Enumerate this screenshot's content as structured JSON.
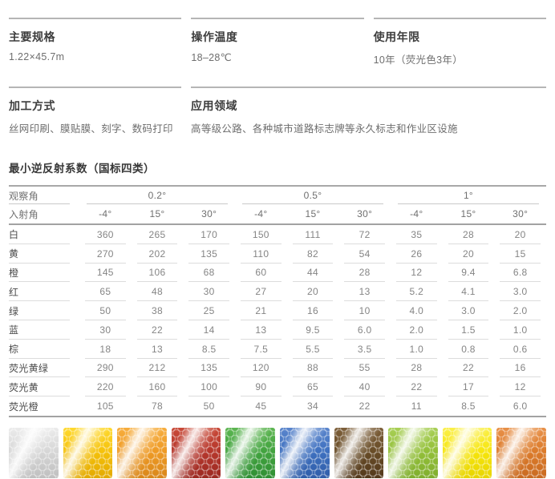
{
  "info_sections": [
    {
      "title": "主要规格",
      "value": "1.22×45.7m"
    },
    {
      "title": "操作温度",
      "value": "18–28℃"
    },
    {
      "title": "使用年限",
      "value": "10年（荧光色3年）"
    },
    {
      "title": "加工方式",
      "value": "丝网印刷、膜贴膜、刻字、数码打印"
    },
    {
      "title": "应用领域",
      "value": "高等级公路、各种城市道路标志牌等永久标志和作业区设施"
    }
  ],
  "table": {
    "title": "最小逆反射系数（国标四类）",
    "observation_angle_label": "观察角",
    "entrance_angle_label": "入射角",
    "observation_angles": [
      "0.2°",
      "0.5°",
      "1°"
    ],
    "entrance_angles": [
      "-4°",
      "15°",
      "30°",
      "-4°",
      "15°",
      "30°",
      "-4°",
      "15°",
      "30°"
    ],
    "rows": [
      {
        "label": "白",
        "values": [
          "360",
          "265",
          "170",
          "150",
          "111",
          "72",
          "35",
          "28",
          "20"
        ]
      },
      {
        "label": "黄",
        "values": [
          "270",
          "202",
          "135",
          "110",
          "82",
          "54",
          "26",
          "20",
          "15"
        ]
      },
      {
        "label": "橙",
        "values": [
          "145",
          "106",
          "68",
          "60",
          "44",
          "28",
          "12",
          "9.4",
          "6.8"
        ]
      },
      {
        "label": "红",
        "values": [
          "65",
          "48",
          "30",
          "27",
          "20",
          "13",
          "5.2",
          "4.1",
          "3.0"
        ]
      },
      {
        "label": "绿",
        "values": [
          "50",
          "38",
          "25",
          "21",
          "16",
          "10",
          "4.0",
          "3.0",
          "2.0"
        ]
      },
      {
        "label": "蓝",
        "values": [
          "30",
          "22",
          "14",
          "13",
          "9.5",
          "6.0",
          "2.0",
          "1.5",
          "1.0"
        ]
      },
      {
        "label": "棕",
        "values": [
          "18",
          "13",
          "8.5",
          "7.5",
          "5.5",
          "3.5",
          "1.0",
          "0.8",
          "0.6"
        ]
      },
      {
        "label": "荧光黄绿",
        "values": [
          "290",
          "212",
          "135",
          "120",
          "88",
          "55",
          "28",
          "22",
          "16"
        ]
      },
      {
        "label": "荧光黄",
        "values": [
          "220",
          "160",
          "100",
          "90",
          "65",
          "40",
          "22",
          "17",
          "12"
        ]
      },
      {
        "label": "荧光橙",
        "values": [
          "105",
          "78",
          "50",
          "45",
          "34",
          "22",
          "11",
          "8.5",
          "6.0"
        ]
      }
    ]
  },
  "swatches": {
    "items": [
      {
        "label": "白",
        "name": "white",
        "c1": "#ebebeb",
        "c2": "#d6d6d6",
        "c3": "#bfbfbf"
      },
      {
        "label": "黄",
        "name": "yellow",
        "c1": "#ffd92e",
        "c2": "#f5c10b",
        "c3": "#e3a900"
      },
      {
        "label": "橙",
        "name": "orange",
        "c1": "#f7ad3c",
        "c2": "#ee9a25",
        "c3": "#d9871a"
      },
      {
        "label": "红",
        "name": "red",
        "c1": "#c94a38",
        "c2": "#b5372c",
        "c3": "#9c2a22"
      },
      {
        "label": "绿",
        "name": "green",
        "c1": "#5cb551",
        "c2": "#42a33f",
        "c3": "#2f8f33"
      },
      {
        "label": "蓝",
        "name": "blue",
        "c1": "#5a85cc",
        "c2": "#3e70bf",
        "c3": "#2f5da9"
      },
      {
        "label": "棕",
        "name": "brown",
        "c1": "#7d5f3a",
        "c2": "#684c27",
        "c3": "#53391c"
      },
      {
        "label": "荧光黄绿",
        "name": "fluorescent-yellow-green",
        "c1": "#a8cf55",
        "c2": "#93bf39",
        "c3": "#7fae2d"
      },
      {
        "label": "荧光黄",
        "name": "fluorescent-yellow",
        "c1": "#fbf04a",
        "c2": "#f6e50c",
        "c3": "#e8d400"
      },
      {
        "label": "荧光橙",
        "name": "fluorescent-orange",
        "c1": "#e89048",
        "c2": "#db7b2b",
        "c3": "#c96a20"
      }
    ]
  }
}
